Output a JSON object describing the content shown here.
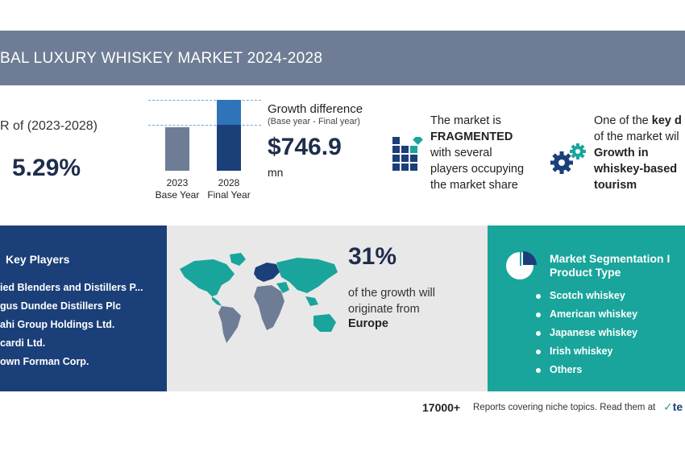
{
  "header": {
    "title": "BAL LUXURY WHISKEY MARKET 2024-2028",
    "bar_color": "#6e7d95"
  },
  "cagr": {
    "label": "R of (2023-2028)",
    "value": "5.29%"
  },
  "growth_chart": {
    "bars": [
      {
        "year": "2023",
        "label": "Base Year"
      },
      {
        "year": "2028",
        "label": "Final Year"
      }
    ],
    "colors": {
      "base": "#6e7d95",
      "final_lower": "#1b3f78",
      "final_upper": "#2f73b8"
    }
  },
  "growth_difference": {
    "label": "Growth difference",
    "sublabel": "(Base year - Final year)",
    "value": "$746.9",
    "unit": "mn"
  },
  "fragmented": {
    "icon": "building-blocks-icon",
    "line1": "The market is",
    "bold": "FRAGMENTED",
    "line2": "with several",
    "line3": "players occupying",
    "line4": "the market share"
  },
  "driver": {
    "icon": "gears-icon",
    "line1_prefix": "One of the ",
    "line1_bold": "key d",
    "line2": "of the market wil",
    "bold1": "Growth in",
    "bold2": "whiskey-based",
    "bold3": "tourism"
  },
  "key_players": {
    "title": "Key Players",
    "panel_color": "#1b3f78",
    "items": [
      "ied Blenders and Distillers P...",
      "gus Dundee Distillers Plc",
      "ahi Group Holdings Ltd.",
      "cardi Ltd.",
      "own Forman Corp."
    ]
  },
  "region": {
    "percent": "31%",
    "text_line1": "of the growth will",
    "text_line2": "originate from",
    "region_name": "Europe",
    "map_icon": "world-map-icon"
  },
  "segmentation": {
    "title_line1": "Market Segmentation I",
    "title_line2": "Product Type",
    "icon": "pie-chart-icon",
    "panel_color": "#19a59b",
    "items": [
      "Scotch whiskey",
      "American whiskey",
      "Japanese whiskey",
      "Irish whiskey",
      "Others"
    ]
  },
  "footer": {
    "count": "17000+",
    "text": "Reports covering niche topics. Read them at",
    "logo_text": "te"
  }
}
